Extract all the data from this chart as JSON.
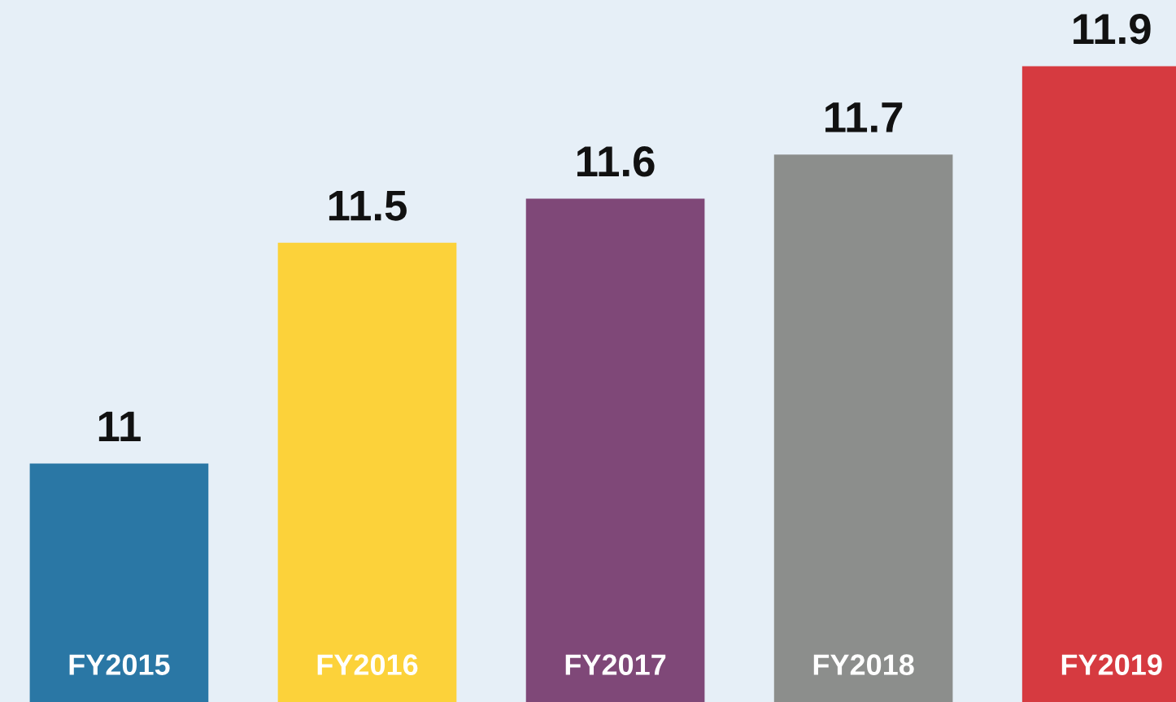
{
  "chart_data": {
    "type": "bar",
    "categories": [
      "FY2015",
      "FY2016",
      "FY2017",
      "FY2018",
      "FY2019"
    ],
    "values": [
      11,
      11.5,
      11.6,
      11.7,
      11.9
    ],
    "colors": [
      "#2a77a5",
      "#fcd23a",
      "#7f4878",
      "#8c8e8c",
      "#d63a40"
    ],
    "ylim": [
      10.46,
      12.05
    ],
    "data_labels": true
  }
}
